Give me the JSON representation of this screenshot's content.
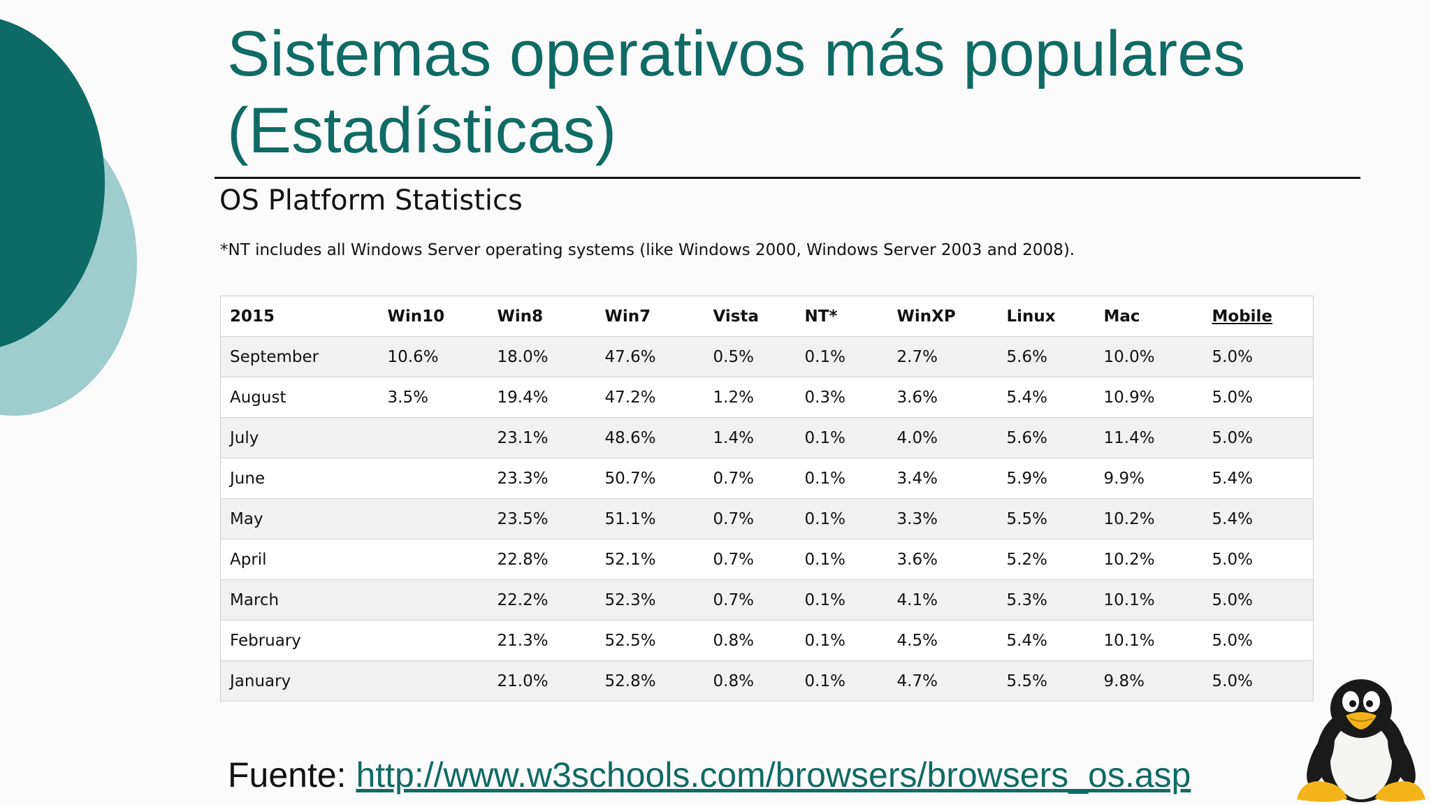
{
  "slide": {
    "title_line1": "Sistemas operativos más populares",
    "title_line2": "(Estadísticas)"
  },
  "page": {
    "heading": "OS Platform Statistics",
    "note": "*NT includes all Windows Server operating systems (like Windows 2000, Windows Server 2003 and 2008)."
  },
  "table": {
    "headers": [
      "2015",
      "Win10",
      "Win8",
      "Win7",
      "Vista",
      "NT*",
      "WinXP",
      "Linux",
      "Mac",
      "Mobile"
    ],
    "rows": [
      [
        "September",
        "10.6%",
        "18.0%",
        "47.6%",
        "0.5%",
        "0.1%",
        "2.7%",
        "5.6%",
        "10.0%",
        "5.0%"
      ],
      [
        "August",
        "3.5%",
        "19.4%",
        "47.2%",
        "1.2%",
        "0.3%",
        "3.6%",
        "5.4%",
        "10.9%",
        "5.0%"
      ],
      [
        "July",
        "",
        "23.1%",
        "48.6%",
        "1.4%",
        "0.1%",
        "4.0%",
        "5.6%",
        "11.4%",
        "5.0%"
      ],
      [
        "June",
        "",
        "23.3%",
        "50.7%",
        "0.7%",
        "0.1%",
        "3.4%",
        "5.9%",
        "9.9%",
        "5.4%"
      ],
      [
        "May",
        "",
        "23.5%",
        "51.1%",
        "0.7%",
        "0.1%",
        "3.3%",
        "5.5%",
        "10.2%",
        "5.4%"
      ],
      [
        "April",
        "",
        "22.8%",
        "52.1%",
        "0.7%",
        "0.1%",
        "3.6%",
        "5.2%",
        "10.2%",
        "5.0%"
      ],
      [
        "March",
        "",
        "22.2%",
        "52.3%",
        "0.7%",
        "0.1%",
        "4.1%",
        "5.3%",
        "10.1%",
        "5.0%"
      ],
      [
        "February",
        "",
        "21.3%",
        "52.5%",
        "0.8%",
        "0.1%",
        "4.5%",
        "5.4%",
        "10.1%",
        "5.0%"
      ],
      [
        "January",
        "",
        "21.0%",
        "52.8%",
        "0.8%",
        "0.1%",
        "4.7%",
        "5.5%",
        "9.8%",
        "5.0%"
      ]
    ]
  },
  "source": {
    "label": "Fuente: ",
    "link_text": "http://www.w3schools.com/browsers/browsers_os.asp"
  },
  "colors": {
    "accent": "#0f6b63",
    "accent_light": "#9dcdcd",
    "background": "#fbfbfb"
  },
  "icons": {
    "decoration": "teal-circles-decoration",
    "mascot": "linux-penguin-icon"
  }
}
